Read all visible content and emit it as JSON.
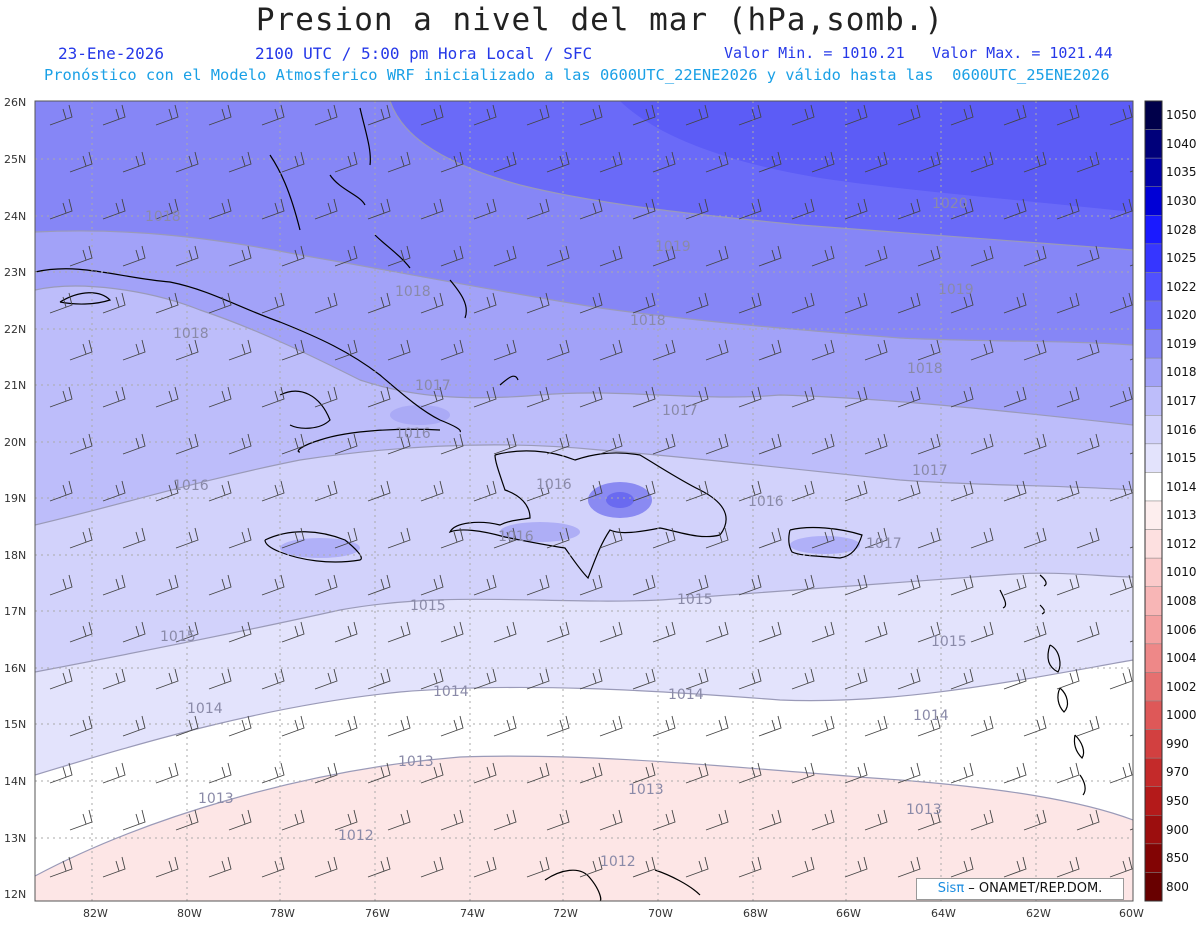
{
  "header": {
    "title": "Presion a nivel del mar (hPa,somb.)",
    "date": "23-Ene-2026",
    "time": "2100 UTC / 5:00 pm Hora Local / SFC",
    "min_value": "Valor Min. = 1010.21",
    "max_value": "Valor Max. = 1021.44",
    "model_info": "Pronóstico con el Modelo Atmosferico WRF inicializado a las 0600UTC_22ENE2026 y válido hasta las  0600UTC_25ENE2026"
  },
  "axes": {
    "lat_labels": [
      "26N",
      "25N",
      "24N",
      "23N",
      "22N",
      "21N",
      "20N",
      "19N",
      "18N",
      "17N",
      "16N",
      "15N",
      "14N",
      "13N",
      "12N"
    ],
    "lon_labels": [
      "82W",
      "80W",
      "78W",
      "76W",
      "74W",
      "72W",
      "70W",
      "68W",
      "66W",
      "64W",
      "62W",
      "60W"
    ]
  },
  "colorbar": {
    "levels": [
      {
        "label": "1050",
        "color": "#00004a"
      },
      {
        "label": "1040",
        "color": "#00007a"
      },
      {
        "label": "1035",
        "color": "#0000a8"
      },
      {
        "label": "1030",
        "color": "#0000d6"
      },
      {
        "label": "1028",
        "color": "#1a1aff"
      },
      {
        "label": "1025",
        "color": "#3636ff"
      },
      {
        "label": "1022",
        "color": "#5050ff"
      },
      {
        "label": "1020",
        "color": "#6a6af8"
      },
      {
        "label": "1019",
        "color": "#8686f6"
      },
      {
        "label": "1018",
        "color": "#a2a2f8"
      },
      {
        "label": "1017",
        "color": "#bdbdfa"
      },
      {
        "label": "1016",
        "color": "#d2d2fb"
      },
      {
        "label": "1015",
        "color": "#e3e3fc"
      },
      {
        "label": "1014",
        "color": "#ffffff"
      },
      {
        "label": "1013",
        "color": "#fdeeee"
      },
      {
        "label": "1012",
        "color": "#fde0e0"
      },
      {
        "label": "1010",
        "color": "#fbcaca"
      },
      {
        "label": "1008",
        "color": "#f8b6b6"
      },
      {
        "label": "1006",
        "color": "#f4a0a0"
      },
      {
        "label": "1004",
        "color": "#ee8888"
      },
      {
        "label": "1002",
        "color": "#e67070"
      },
      {
        "label": "1000",
        "color": "#de5858"
      },
      {
        "label": "990",
        "color": "#d24040"
      },
      {
        "label": "970",
        "color": "#c42a2a"
      },
      {
        "label": "950",
        "color": "#b41a1a"
      },
      {
        "label": "900",
        "color": "#9c0e0e"
      },
      {
        "label": "850",
        "color": "#820404"
      },
      {
        "label": "800",
        "color": "#680000"
      }
    ]
  },
  "isobar_labels": [
    "1020",
    "1019",
    "1019",
    "1018",
    "1018",
    "1018",
    "1018",
    "1018",
    "1017",
    "1017",
    "1017",
    "1017",
    "1016",
    "1016",
    "1016",
    "1016",
    "1016",
    "1015",
    "1015",
    "1015",
    "1015",
    "1014",
    "1014",
    "1014",
    "1014",
    "1013",
    "1013",
    "1013",
    "1013",
    "1012",
    "1012"
  ],
  "credit": {
    "brand": "Sisπ",
    "text": " – ONAMET/REP.DOM."
  }
}
